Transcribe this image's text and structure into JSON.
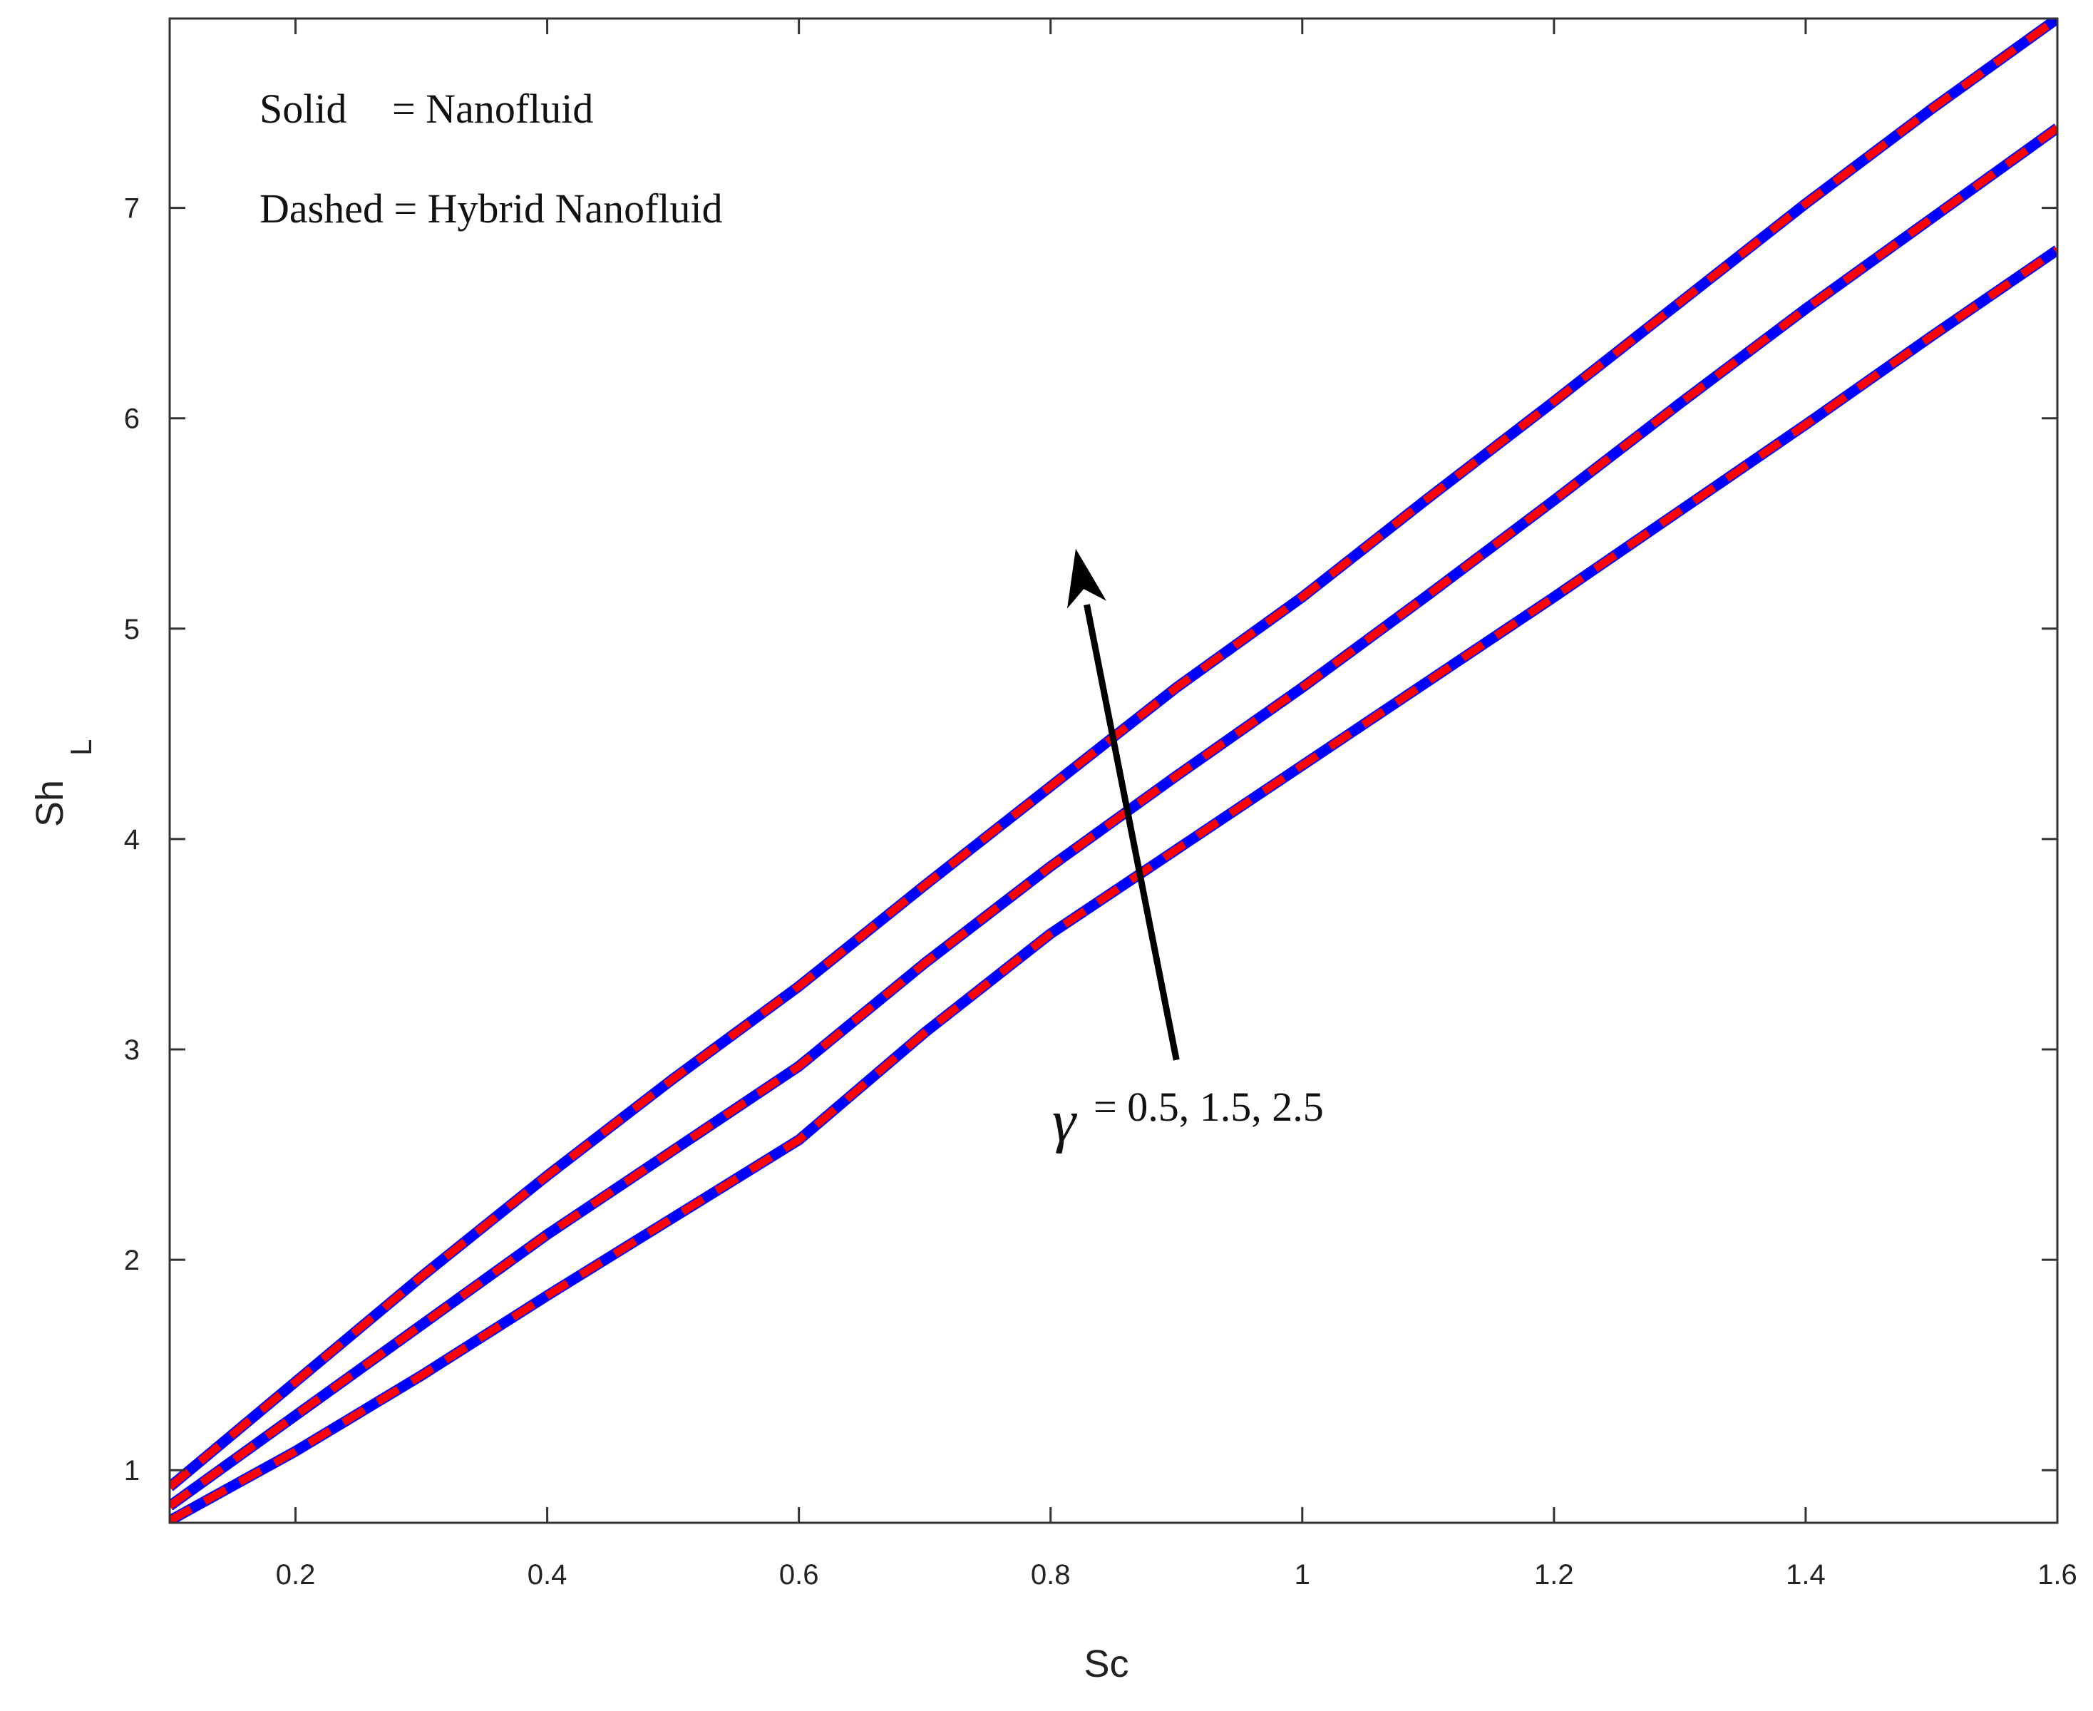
{
  "chart_data": {
    "type": "line",
    "xlabel": "Sc",
    "ylabel": "Sh",
    "ylabel_subscript": "L",
    "xlim": [
      0.1,
      1.6
    ],
    "ylim": [
      0.75,
      7.9
    ],
    "xticks": [
      0.2,
      0.4,
      0.6,
      0.8,
      1,
      1.2,
      1.4,
      1.6
    ],
    "xtick_labels": [
      "0.2",
      "0.4",
      "0.6",
      "0.8",
      "1",
      "1.2",
      "1.4",
      "1.6"
    ],
    "yticks": [
      1,
      2,
      3,
      4,
      5,
      6,
      7
    ],
    "ytick_labels": [
      "1",
      "2",
      "3",
      "4",
      "5",
      "6",
      "7"
    ],
    "grid": false,
    "colors": {
      "solid": "#0000ff",
      "dashed": "#ff0000",
      "axis": "#333333",
      "arrow": "#000000"
    },
    "x": [
      0.1,
      0.2,
      0.3,
      0.4,
      0.5,
      0.6,
      0.7,
      0.8,
      0.9,
      1.0,
      1.1,
      1.2,
      1.3,
      1.4,
      1.5,
      1.6
    ],
    "series": [
      {
        "style": "solid",
        "values": [
          0.76,
          1.09,
          1.45,
          1.83,
          2.2,
          2.57,
          3.08,
          3.55,
          3.95,
          4.35,
          4.75,
          5.15,
          5.56,
          5.97,
          6.39,
          6.8
        ]
      },
      {
        "style": "solid",
        "values": [
          0.83,
          1.26,
          1.69,
          2.12,
          2.52,
          2.92,
          3.41,
          3.87,
          4.3,
          4.72,
          5.16,
          5.61,
          6.07,
          6.52,
          6.95,
          7.38
        ]
      },
      {
        "style": "solid",
        "values": [
          0.92,
          1.42,
          1.92,
          2.4,
          2.86,
          3.3,
          3.78,
          4.25,
          4.72,
          5.15,
          5.62,
          6.08,
          6.55,
          7.02,
          7.47,
          7.9
        ]
      },
      {
        "style": "dashed",
        "values": [
          0.76,
          1.09,
          1.45,
          1.83,
          2.2,
          2.57,
          3.08,
          3.55,
          3.95,
          4.35,
          4.75,
          5.15,
          5.56,
          5.97,
          6.39,
          6.8
        ]
      },
      {
        "style": "dashed",
        "values": [
          0.83,
          1.26,
          1.69,
          2.12,
          2.52,
          2.92,
          3.41,
          3.87,
          4.3,
          4.72,
          5.16,
          5.61,
          6.07,
          6.52,
          6.95,
          7.38
        ]
      },
      {
        "style": "dashed",
        "values": [
          0.92,
          1.42,
          1.92,
          2.4,
          2.86,
          3.3,
          3.78,
          4.25,
          4.72,
          5.15,
          5.62,
          6.08,
          6.55,
          7.02,
          7.47,
          7.9
        ]
      }
    ],
    "legend": {
      "position": "top-left",
      "line1_key": "Solid",
      "line1_value": "= Nanofluid",
      "line2": "Dashed = Hybrid Nanofluid"
    },
    "annotation": {
      "symbol": "γ",
      "text": "= 0.5, 1.5, 2.5",
      "arrow_from": [
        0.9,
        2.95
      ],
      "arrow_to": [
        0.82,
        5.38
      ]
    }
  }
}
